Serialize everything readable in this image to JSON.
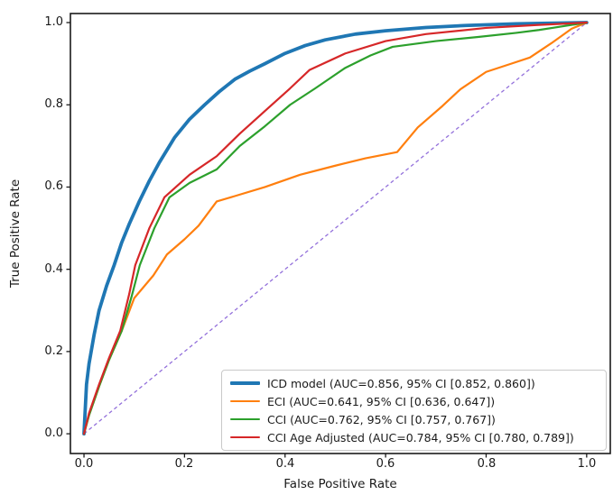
{
  "figure": {
    "background": "#ffffff",
    "spine_color": "#1a1a1a"
  },
  "axes": {
    "xlabel": "False Positive Rate",
    "ylabel": "True Positive Rate",
    "xticklabels": [
      "0.0",
      "0.2",
      "0.4",
      "0.6",
      "0.8",
      "1.0"
    ],
    "yticklabels": [
      "0.0",
      "0.2",
      "0.4",
      "0.6",
      "0.8",
      "1.0"
    ]
  },
  "chart_data": {
    "type": "line",
    "subtype": "roc-curves",
    "title": "",
    "xlabel": "False Positive Rate",
    "ylabel": "True Positive Rate",
    "xticks": [
      0.0,
      0.2,
      0.4,
      0.6,
      0.8,
      1.0
    ],
    "yticks": [
      0.0,
      0.2,
      0.4,
      0.6,
      0.8,
      1.0
    ],
    "xlim": [
      -0.027,
      1.047
    ],
    "ylim": [
      -0.048,
      1.022
    ],
    "grid": false,
    "legend_position": "lower right",
    "series": [
      {
        "name": "ICD model",
        "auc": 0.856,
        "ci_95": [
          0.852,
          0.86
        ],
        "legend_label": "ICD model (AUC=0.856, 95% CI [0.852, 0.860])",
        "color": "#1f77b4",
        "linewidth": 3.8,
        "points": [
          [
            0,
            0
          ],
          [
            0.005,
            0.12
          ],
          [
            0.01,
            0.17
          ],
          [
            0.02,
            0.24
          ],
          [
            0.03,
            0.3
          ],
          [
            0.045,
            0.36
          ],
          [
            0.06,
            0.41
          ],
          [
            0.075,
            0.465
          ],
          [
            0.09,
            0.51
          ],
          [
            0.11,
            0.565
          ],
          [
            0.13,
            0.615
          ],
          [
            0.15,
            0.66
          ],
          [
            0.18,
            0.72
          ],
          [
            0.21,
            0.765
          ],
          [
            0.24,
            0.8
          ],
          [
            0.27,
            0.833
          ],
          [
            0.3,
            0.862
          ],
          [
            0.33,
            0.882
          ],
          [
            0.36,
            0.9
          ],
          [
            0.4,
            0.925
          ],
          [
            0.44,
            0.944
          ],
          [
            0.48,
            0.958
          ],
          [
            0.54,
            0.972
          ],
          [
            0.6,
            0.98
          ],
          [
            0.68,
            0.988
          ],
          [
            0.76,
            0.993
          ],
          [
            0.86,
            0.997
          ],
          [
            1.0,
            1.0
          ]
        ]
      },
      {
        "name": "ECI",
        "auc": 0.641,
        "ci_95": [
          0.636,
          0.647
        ],
        "legend_label": "ECI (AUC=0.641, 95% CI [0.636, 0.647])",
        "color": "#ff7f0e",
        "linewidth": 2.2,
        "points": [
          [
            0,
            0
          ],
          [
            0.01,
            0.045
          ],
          [
            0.03,
            0.115
          ],
          [
            0.05,
            0.18
          ],
          [
            0.075,
            0.25
          ],
          [
            0.1,
            0.33
          ],
          [
            0.138,
            0.385
          ],
          [
            0.165,
            0.436
          ],
          [
            0.2,
            0.473
          ],
          [
            0.228,
            0.506
          ],
          [
            0.264,
            0.565
          ],
          [
            0.3,
            0.578
          ],
          [
            0.36,
            0.6
          ],
          [
            0.43,
            0.63
          ],
          [
            0.5,
            0.652
          ],
          [
            0.56,
            0.67
          ],
          [
            0.623,
            0.685
          ],
          [
            0.664,
            0.745
          ],
          [
            0.713,
            0.797
          ],
          [
            0.749,
            0.838
          ],
          [
            0.8,
            0.88
          ],
          [
            0.85,
            0.9
          ],
          [
            0.887,
            0.915
          ],
          [
            0.93,
            0.95
          ],
          [
            0.97,
            0.985
          ],
          [
            1.0,
            1.0
          ]
        ]
      },
      {
        "name": "CCI",
        "auc": 0.762,
        "ci_95": [
          0.757,
          0.767
        ],
        "legend_label": "CCI (AUC=0.762, 95% CI [0.757, 0.767])",
        "color": "#2ca02c",
        "linewidth": 2.2,
        "points": [
          [
            0,
            0
          ],
          [
            0.01,
            0.045
          ],
          [
            0.03,
            0.115
          ],
          [
            0.05,
            0.18
          ],
          [
            0.075,
            0.25
          ],
          [
            0.095,
            0.335
          ],
          [
            0.111,
            0.41
          ],
          [
            0.14,
            0.5
          ],
          [
            0.17,
            0.575
          ],
          [
            0.21,
            0.61
          ],
          [
            0.264,
            0.643
          ],
          [
            0.31,
            0.7
          ],
          [
            0.36,
            0.748
          ],
          [
            0.41,
            0.8
          ],
          [
            0.46,
            0.84
          ],
          [
            0.52,
            0.89
          ],
          [
            0.57,
            0.92
          ],
          [
            0.614,
            0.941
          ],
          [
            0.7,
            0.955
          ],
          [
            0.784,
            0.965
          ],
          [
            0.86,
            0.975
          ],
          [
            0.905,
            0.982
          ],
          [
            1.0,
            1.0
          ]
        ]
      },
      {
        "name": "CCI Age Adjusted",
        "auc": 0.784,
        "ci_95": [
          0.78,
          0.789
        ],
        "legend_label": "CCI Age Adjusted (AUC=0.784, 95% CI [0.780, 0.789])",
        "color": "#d62728",
        "linewidth": 2.2,
        "points": [
          [
            0,
            0
          ],
          [
            0.01,
            0.05
          ],
          [
            0.03,
            0.12
          ],
          [
            0.05,
            0.185
          ],
          [
            0.072,
            0.25
          ],
          [
            0.09,
            0.34
          ],
          [
            0.102,
            0.41
          ],
          [
            0.13,
            0.5
          ],
          [
            0.16,
            0.575
          ],
          [
            0.21,
            0.63
          ],
          [
            0.264,
            0.675
          ],
          [
            0.31,
            0.73
          ],
          [
            0.36,
            0.785
          ],
          [
            0.41,
            0.84
          ],
          [
            0.449,
            0.885
          ],
          [
            0.52,
            0.925
          ],
          [
            0.6,
            0.955
          ],
          [
            0.68,
            0.972
          ],
          [
            0.8,
            0.987
          ],
          [
            0.9,
            0.994
          ],
          [
            1.0,
            1.0
          ]
        ]
      }
    ],
    "reference_line": {
      "name": "chance-diagonal",
      "points": [
        [
          0,
          0
        ],
        [
          1,
          1
        ]
      ],
      "color": "#9370db",
      "style": "dashed",
      "linewidth": 1.3
    }
  }
}
